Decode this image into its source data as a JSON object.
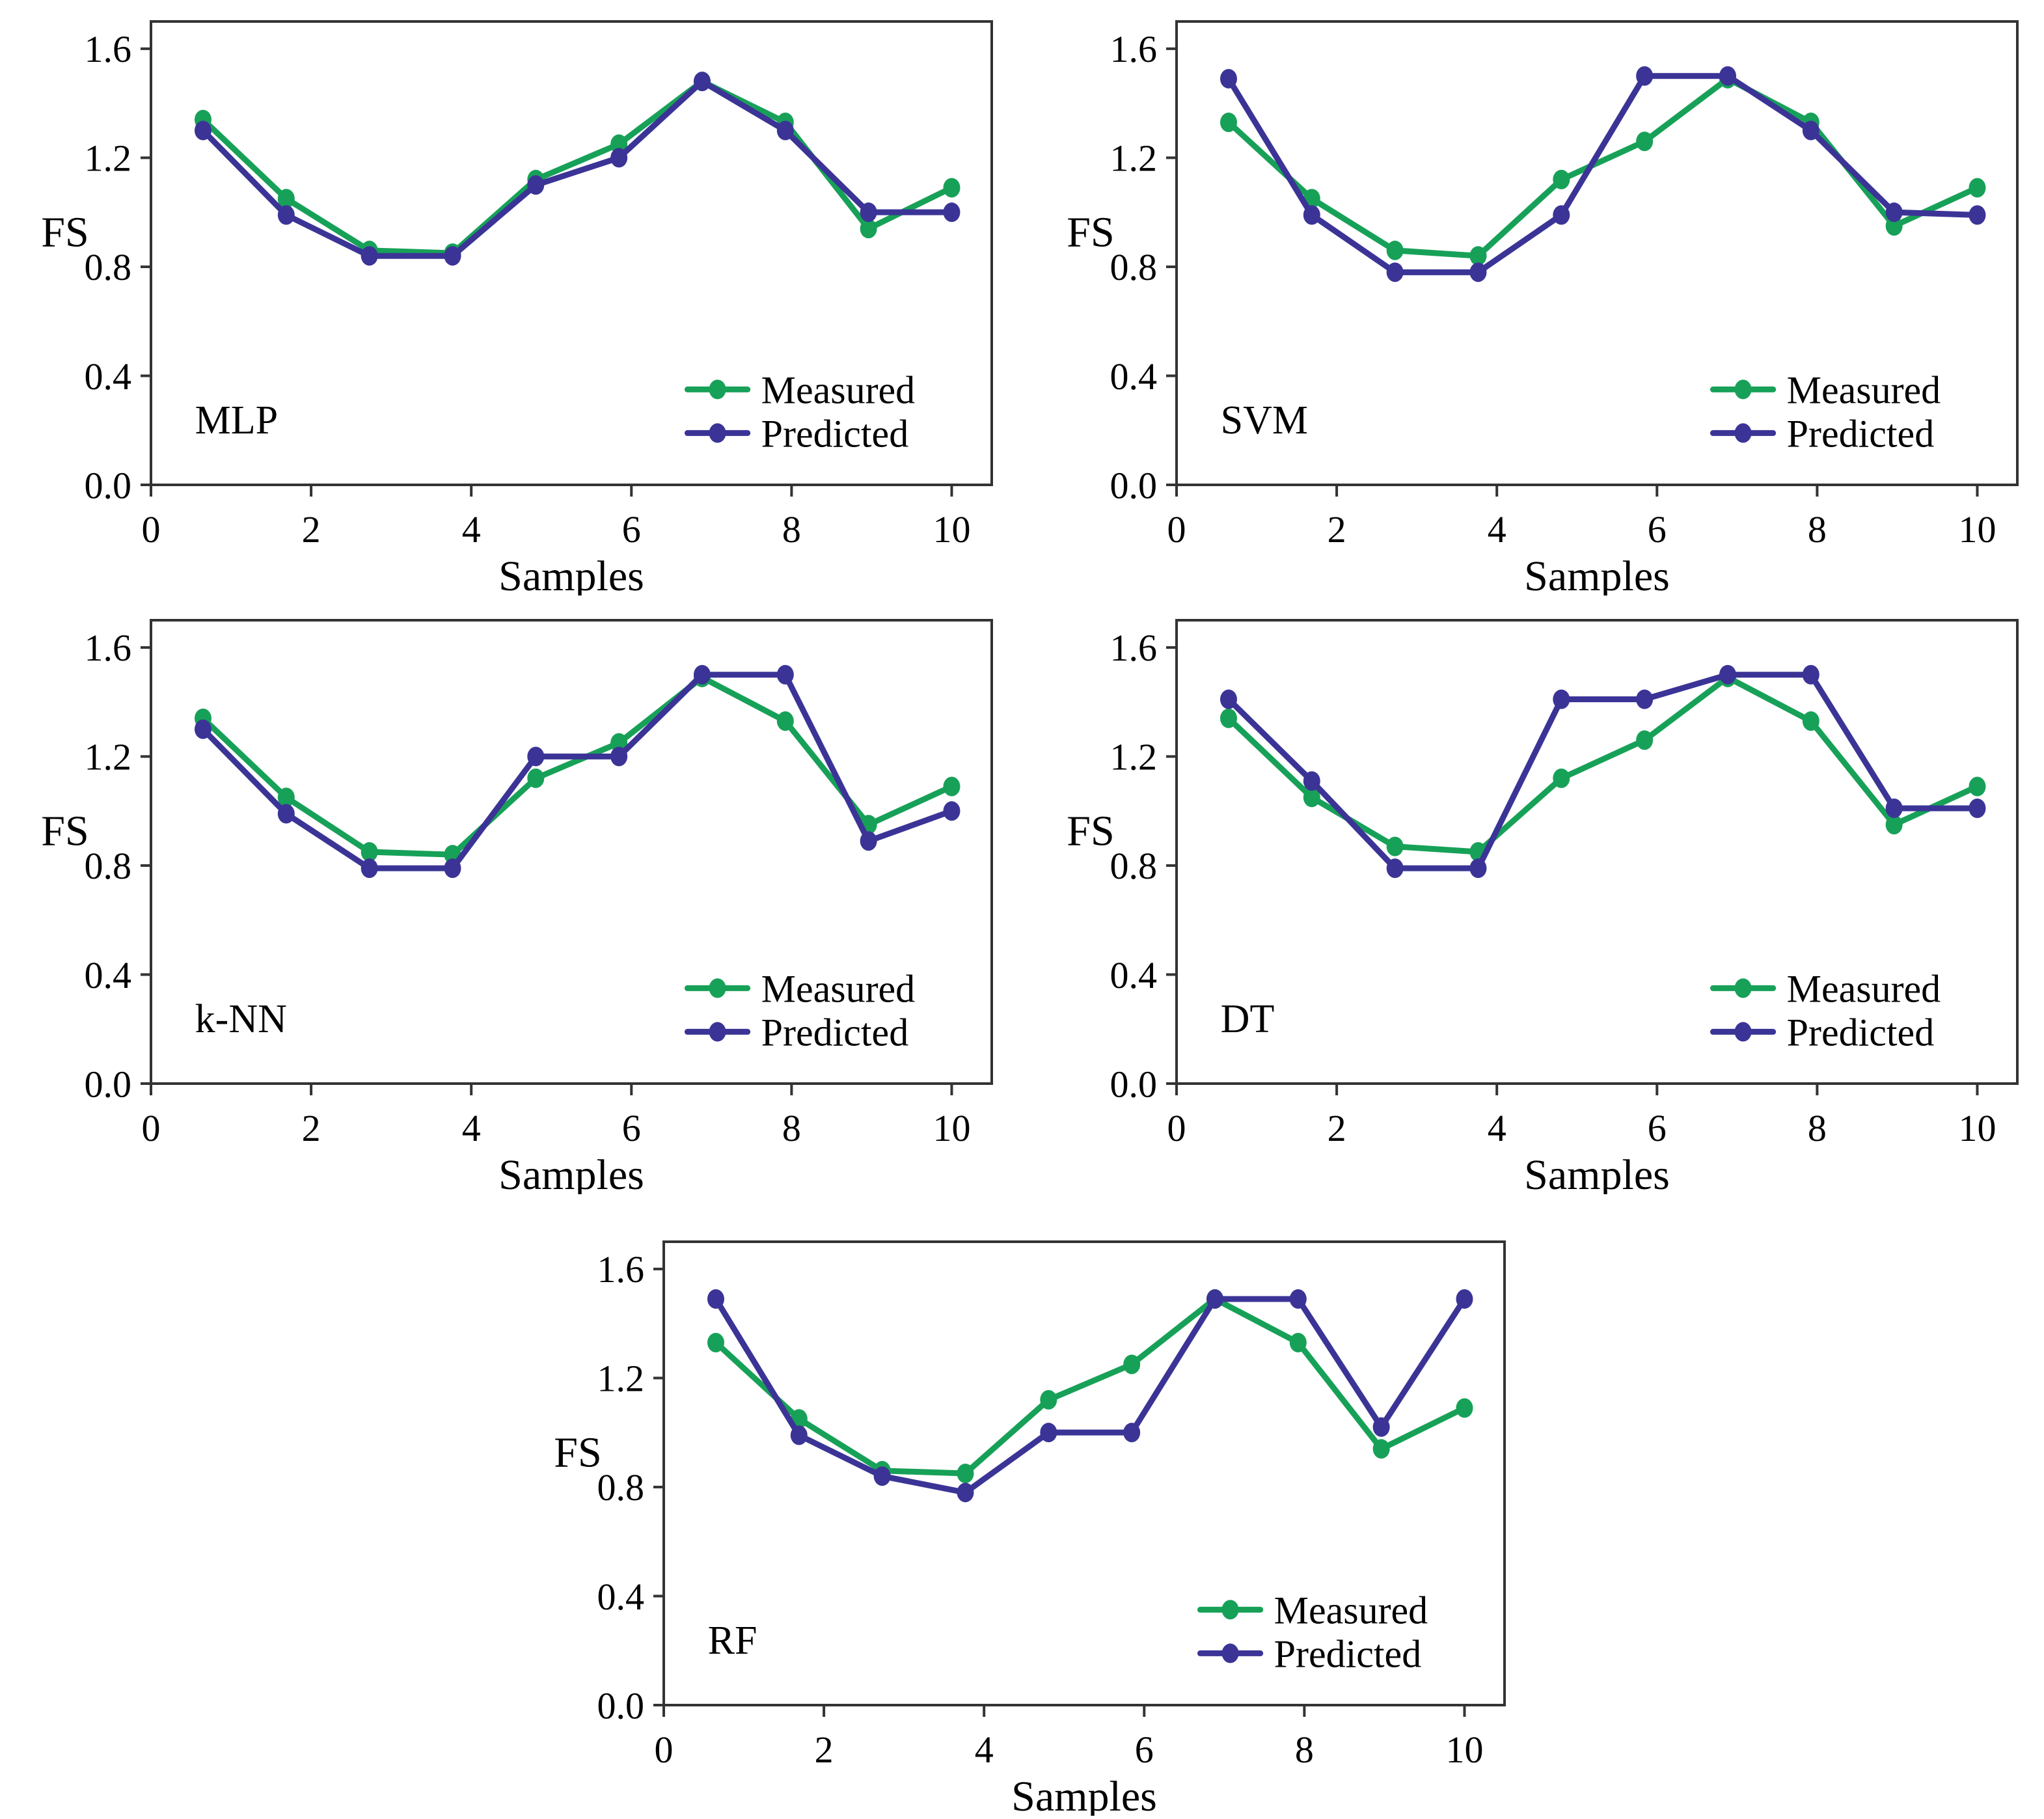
{
  "figure": {
    "description": "Comparison of measured and predicted FS values for five machine-learning models",
    "axis": {
      "xlabel": "Samples",
      "ylabel": "FS",
      "y_tick_labels": [
        "0.0",
        "0.4",
        "0.8",
        "1.2",
        "1.6"
      ],
      "y_tick_values": [
        0.0,
        0.4,
        0.8,
        1.2,
        1.6
      ],
      "x_tick_labels": [
        "0",
        "2",
        "4",
        "6",
        "8",
        "10"
      ],
      "x_tick_values": [
        0,
        2,
        4,
        6,
        8,
        10
      ],
      "xlim": [
        0,
        10.5
      ],
      "ylim": [
        0,
        1.7
      ],
      "grid": false
    },
    "legend": {
      "position": "inside-center-right",
      "entries": [
        {
          "key": "measured",
          "label": "Measured"
        },
        {
          "key": "predicted",
          "label": "Predicted"
        }
      ]
    },
    "colors": {
      "measured": "#17a158",
      "predicted": "#3b3496",
      "frame": "#333333",
      "text": "#000000",
      "background": "#ffffff"
    }
  },
  "chart_data": [
    {
      "type": "line",
      "title": "MLP",
      "xlabel": "Samples",
      "ylabel": "FS",
      "xlim": [
        0,
        10.5
      ],
      "ylim": [
        0,
        1.7
      ],
      "grid": false,
      "legend_position": "inside-center-right",
      "x": [
        1,
        2,
        3,
        4,
        5,
        6,
        7,
        8,
        9,
        10
      ],
      "series": [
        {
          "name": "Measured",
          "values": [
            1.34,
            1.05,
            0.86,
            0.85,
            1.12,
            1.25,
            1.48,
            1.33,
            0.94,
            1.09
          ]
        },
        {
          "name": "Predicted",
          "values": [
            1.3,
            0.99,
            0.84,
            0.84,
            1.1,
            1.2,
            1.48,
            1.3,
            1.0,
            1.0
          ]
        }
      ]
    },
    {
      "type": "line",
      "title": "SVM",
      "xlabel": "Samples",
      "ylabel": "FS",
      "xlim": [
        0,
        10.5
      ],
      "ylim": [
        0,
        1.7
      ],
      "grid": false,
      "legend_position": "inside-center-right",
      "x": [
        1,
        2,
        3,
        4,
        5,
        6,
        7,
        8,
        9,
        10
      ],
      "series": [
        {
          "name": "Measured",
          "values": [
            1.33,
            1.05,
            0.86,
            0.84,
            1.12,
            1.26,
            1.49,
            1.33,
            0.95,
            1.09
          ]
        },
        {
          "name": "Predicted",
          "values": [
            1.49,
            0.99,
            0.78,
            0.78,
            0.99,
            1.5,
            1.5,
            1.3,
            1.0,
            0.99
          ]
        }
      ]
    },
    {
      "type": "line",
      "title": "k-NN",
      "xlabel": "Samples",
      "ylabel": "FS",
      "xlim": [
        0,
        10.5
      ],
      "ylim": [
        0,
        1.7
      ],
      "grid": false,
      "legend_position": "inside-center-right",
      "x": [
        1,
        2,
        3,
        4,
        5,
        6,
        7,
        8,
        9,
        10
      ],
      "series": [
        {
          "name": "Measured",
          "values": [
            1.34,
            1.05,
            0.85,
            0.84,
            1.12,
            1.25,
            1.49,
            1.33,
            0.95,
            1.09
          ]
        },
        {
          "name": "Predicted",
          "values": [
            1.3,
            0.99,
            0.79,
            0.79,
            1.2,
            1.2,
            1.5,
            1.5,
            0.89,
            1.0
          ]
        }
      ]
    },
    {
      "type": "line",
      "title": "DT",
      "xlabel": "Samples",
      "ylabel": "FS",
      "xlim": [
        0,
        10.5
      ],
      "ylim": [
        0,
        1.7
      ],
      "grid": false,
      "legend_position": "inside-center-right",
      "x": [
        1,
        2,
        3,
        4,
        5,
        6,
        7,
        8,
        9,
        10
      ],
      "series": [
        {
          "name": "Measured",
          "values": [
            1.34,
            1.05,
            0.87,
            0.85,
            1.12,
            1.26,
            1.49,
            1.33,
            0.95,
            1.09
          ]
        },
        {
          "name": "Predicted",
          "values": [
            1.41,
            1.11,
            0.79,
            0.79,
            1.41,
            1.41,
            1.5,
            1.5,
            1.01,
            1.01
          ]
        }
      ]
    },
    {
      "type": "line",
      "title": "RF",
      "xlabel": "Samples",
      "ylabel": "FS",
      "xlim": [
        0,
        10.5
      ],
      "ylim": [
        0,
        1.7
      ],
      "grid": false,
      "legend_position": "inside-center-right",
      "x": [
        1,
        2,
        3,
        4,
        5,
        6,
        7,
        8,
        9,
        10
      ],
      "series": [
        {
          "name": "Measured",
          "values": [
            1.33,
            1.05,
            0.86,
            0.85,
            1.12,
            1.25,
            1.49,
            1.33,
            0.94,
            1.09
          ]
        },
        {
          "name": "Predicted",
          "values": [
            1.49,
            0.99,
            0.84,
            0.78,
            1.0,
            1.0,
            1.49,
            1.49,
            1.02,
            1.49
          ]
        }
      ]
    }
  ]
}
